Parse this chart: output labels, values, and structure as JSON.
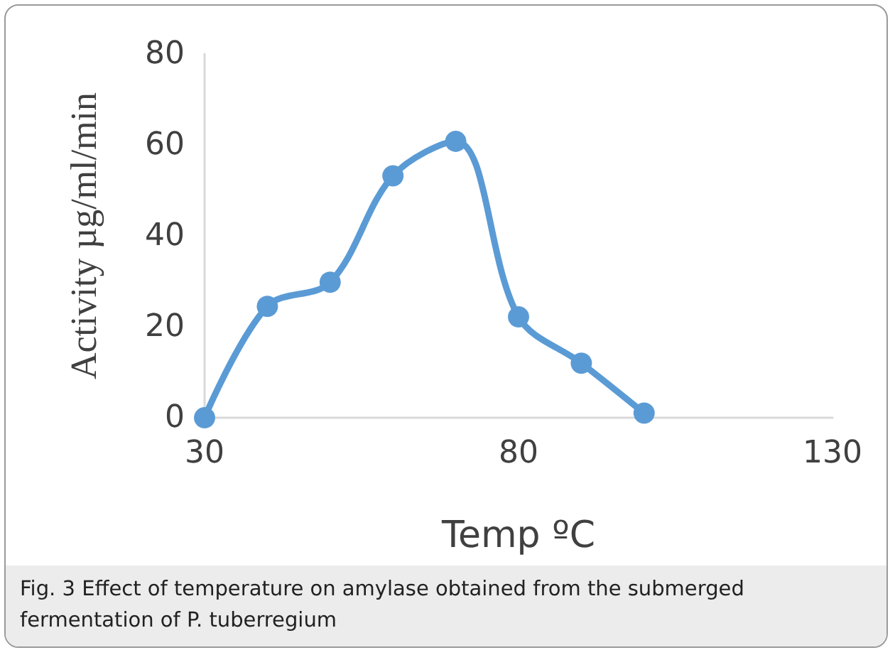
{
  "chart_data": {
    "type": "line",
    "xlabel": "Temp ºC",
    "ylabel": "Activity µg/ml/min",
    "x": [
      30,
      40,
      50,
      60,
      70,
      80,
      90,
      100
    ],
    "series": [
      {
        "color": "#5b9bd5",
        "values": [
          0,
          24.5,
          29.8,
          53.2,
          60.8,
          22.2,
          12,
          1
        ]
      }
    ],
    "xlim": [
      30,
      130
    ],
    "xticks": [
      30,
      80,
      130
    ],
    "ylim": [
      0,
      80
    ],
    "yticks": [
      0,
      20,
      40,
      60,
      80
    ],
    "marker": "circle",
    "line_style": "solid",
    "annotations": [
      "Fig. 3 Effect of temperature on amylase obtained from the submerged fermentation of P. tuberregium"
    ]
  }
}
